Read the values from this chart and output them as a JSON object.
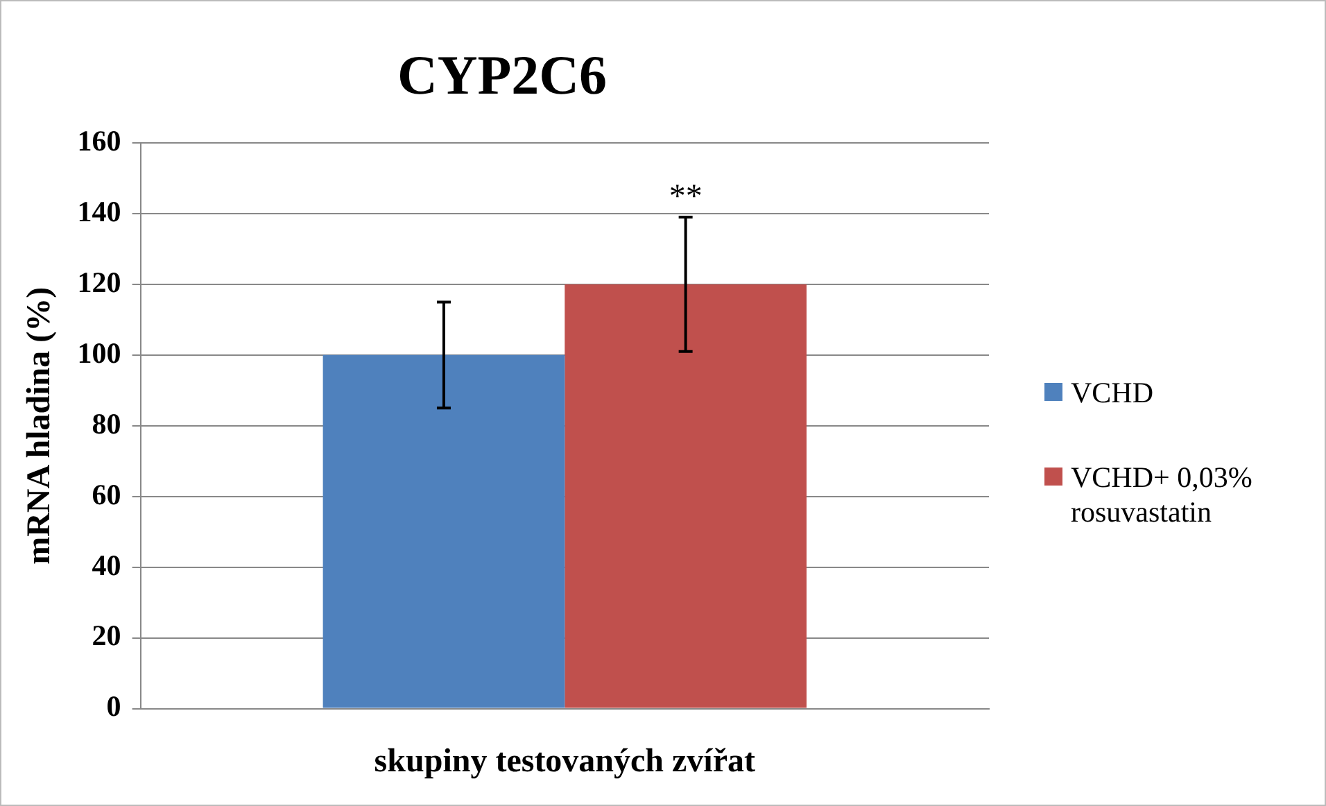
{
  "chart_data": {
    "type": "bar",
    "title": "CYP2C6",
    "xlabel": "skupiny testovaných zvířat",
    "ylabel": "mRNA hladina (%)",
    "categories": [
      null
    ],
    "series": [
      {
        "name": "VCHD",
        "color": "#4f81bd",
        "values": [
          100
        ],
        "errors": [
          15
        ]
      },
      {
        "name": "VCHD+ 0,03% rosuvastatin",
        "color": "#c0504d",
        "values": [
          120
        ],
        "errors": [
          [
            101,
            139
          ]
        ]
      }
    ],
    "ylim": [
      0,
      160
    ],
    "yticks": [
      0,
      20,
      40,
      60,
      80,
      100,
      120,
      140,
      160
    ],
    "grid": "y",
    "legend": "right",
    "annotations": [
      "**"
    ]
  }
}
